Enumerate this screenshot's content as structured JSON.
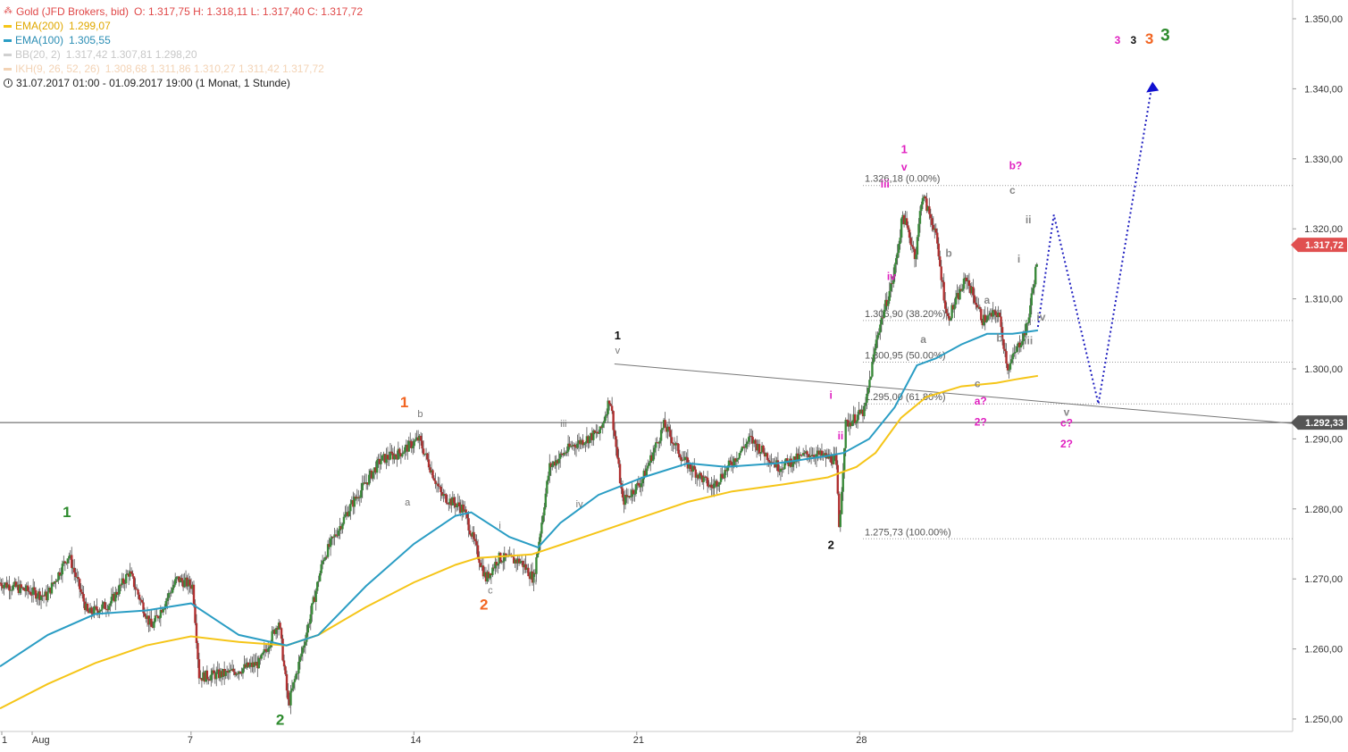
{
  "legend": {
    "title": "Gold (JFD Brokers, bid)",
    "ohlc": "O: 1.317,75  H: 1.318,11  L: 1.317,40  C: 1.317,72",
    "ema200": {
      "label": "EMA(200)",
      "value": "1.299,07",
      "color": "#f5c518"
    },
    "ema100": {
      "label": "EMA(100)",
      "value": "1.305,55",
      "color": "#2a9dc4"
    },
    "bb": {
      "label": "BB(20, 2)",
      "values": "1.317,42   1.307,81   1.298,20"
    },
    "ikh": {
      "label": "IKH(9, 26, 52, 26)",
      "values": "1.308,68   1.311,86   1.310,27   1.311,42   1.317,72"
    },
    "range": "31.07.2017 01:00 - 01.09.2017 19:00   (1 Monat, 1 Stunde)"
  },
  "chart_data": {
    "type": "candlestick",
    "instrument": "Gold (JFD Brokers, bid)",
    "timeframe": "1 Stunde",
    "y_ticks": [
      "1.250,00",
      "1.260,00",
      "1.270,00",
      "1.280,00",
      "1.290,00",
      "1.300,00",
      "1.310,00",
      "1.320,00",
      "1.330,00",
      "1.340,00",
      "1.350,00"
    ],
    "ylim": [
      1246,
      1353
    ],
    "x_ticks": [
      {
        "label": "1",
        "x": 0
      },
      {
        "label": "Aug",
        "x": 1
      },
      {
        "label": "7",
        "x": 6
      },
      {
        "label": "14",
        "x": 13
      },
      {
        "label": "21",
        "x": 20
      },
      {
        "label": "28",
        "x": 27
      }
    ],
    "xlim": [
      0,
      40.6
    ],
    "price_path": [
      [
        0,
        1269.5
      ],
      [
        1.5,
        1267.5
      ],
      [
        2.2,
        1273.5
      ],
      [
        2.8,
        1265
      ],
      [
        3.5,
        1266.5
      ],
      [
        4.1,
        1271
      ],
      [
        4.8,
        1263
      ],
      [
        5.6,
        1270
      ],
      [
        6.1,
        1269
      ],
      [
        6.3,
        1256
      ],
      [
        7.2,
        1256.5
      ],
      [
        8.2,
        1258
      ],
      [
        8.8,
        1264
      ],
      [
        9.1,
        1252
      ],
      [
        9.6,
        1261
      ],
      [
        10.2,
        1273
      ],
      [
        11,
        1280
      ],
      [
        12,
        1287
      ],
      [
        12.6,
        1288
      ],
      [
        13.2,
        1290
      ],
      [
        13.9,
        1282
      ],
      [
        14.6,
        1280
      ],
      [
        15.3,
        1270
      ],
      [
        15.7,
        1273
      ],
      [
        16.4,
        1272.5
      ],
      [
        16.8,
        1270
      ],
      [
        17.3,
        1286
      ],
      [
        18,
        1289
      ],
      [
        18.9,
        1291
      ],
      [
        19.2,
        1296
      ],
      [
        19.6,
        1281
      ],
      [
        20.2,
        1284
      ],
      [
        20.9,
        1292
      ],
      [
        21.5,
        1287
      ],
      [
        22.4,
        1283
      ],
      [
        23.6,
        1290
      ],
      [
        24.5,
        1286
      ],
      [
        25.5,
        1288
      ],
      [
        26.3,
        1287
      ],
      [
        26.4,
        1277
      ],
      [
        26.6,
        1292
      ],
      [
        27.2,
        1294
      ],
      [
        27.6,
        1305
      ],
      [
        28.1,
        1313
      ],
      [
        28.4,
        1322
      ],
      [
        28.8,
        1316
      ],
      [
        29,
        1325
      ],
      [
        29.4,
        1320
      ],
      [
        29.8,
        1307
      ],
      [
        30.4,
        1313
      ],
      [
        30.9,
        1307
      ],
      [
        31.4,
        1308
      ],
      [
        31.7,
        1300
      ],
      [
        32,
        1303
      ],
      [
        32.3,
        1306
      ],
      [
        32.7,
        1318
      ]
    ],
    "ema100": [
      [
        0,
        1257.5
      ],
      [
        1.5,
        1262
      ],
      [
        3,
        1265
      ],
      [
        4.6,
        1265.5
      ],
      [
        6,
        1266.5
      ],
      [
        7.5,
        1262
      ],
      [
        9,
        1260.5
      ],
      [
        10,
        1262
      ],
      [
        11.5,
        1269
      ],
      [
        13,
        1275
      ],
      [
        14.3,
        1279
      ],
      [
        14.8,
        1279.5
      ],
      [
        16,
        1276
      ],
      [
        16.9,
        1274.5
      ],
      [
        17.6,
        1278
      ],
      [
        18.8,
        1282
      ],
      [
        20.2,
        1284.5
      ],
      [
        21.6,
        1286.5
      ],
      [
        22.8,
        1286
      ],
      [
        24.4,
        1286.5
      ],
      [
        25.9,
        1287.5
      ],
      [
        26.5,
        1288
      ],
      [
        27.3,
        1290
      ],
      [
        28.1,
        1294.5
      ],
      [
        28.8,
        1300.5
      ],
      [
        29.4,
        1301.5
      ],
      [
        30.2,
        1303.5
      ],
      [
        31,
        1305
      ],
      [
        31.8,
        1305
      ],
      [
        32.6,
        1305.5
      ]
    ],
    "ema200": [
      [
        0,
        1251.5
      ],
      [
        1.5,
        1255
      ],
      [
        3,
        1258
      ],
      [
        4.6,
        1260.5
      ],
      [
        6,
        1261.8
      ],
      [
        7.5,
        1261
      ],
      [
        9,
        1260.5
      ],
      [
        10,
        1262
      ],
      [
        11.5,
        1266
      ],
      [
        13,
        1269.5
      ],
      [
        14.3,
        1272
      ],
      [
        15,
        1273
      ],
      [
        16.7,
        1273.5
      ],
      [
        17.7,
        1275
      ],
      [
        19,
        1277
      ],
      [
        20.3,
        1279
      ],
      [
        21.6,
        1281
      ],
      [
        23,
        1282.5
      ],
      [
        24.6,
        1283.5
      ],
      [
        26,
        1284.5
      ],
      [
        26.9,
        1286
      ],
      [
        27.5,
        1288
      ],
      [
        28.3,
        1293
      ],
      [
        29.1,
        1296
      ],
      [
        30.2,
        1297.5
      ],
      [
        31.3,
        1298
      ],
      [
        31.9,
        1298.5
      ],
      [
        32.6,
        1299
      ]
    ],
    "fib_levels": [
      {
        "label": "1.326,18 (0.00%)",
        "value": 1326.18
      },
      {
        "label": "1.306,90 (38.20%)",
        "value": 1306.9
      },
      {
        "label": "1.300,95 (50.00%)",
        "value": 1300.95
      },
      {
        "label": "1.295,00 (61.80%)",
        "value": 1295.0
      },
      {
        "label": "1.275,73 (100.00%)",
        "value": 1275.73
      }
    ],
    "horizontal_line": {
      "value": 1292.33,
      "label": "1.292,33"
    },
    "current_price": {
      "value": 1317.72,
      "label": "1.317,72"
    },
    "trendline": [
      [
        19.3,
        1300.7
      ],
      [
        40.6,
        1292.2
      ]
    ],
    "forecast_path": [
      [
        32.6,
        1306
      ],
      [
        33.1,
        1322
      ],
      [
        34.5,
        1295
      ],
      [
        36.2,
        1341
      ]
    ],
    "wave_labels": [
      {
        "text": "1",
        "x": 2.1,
        "y": 1278.8,
        "color": "#2e8b2e",
        "size": 17
      },
      {
        "text": "2",
        "x": 8.8,
        "y": 1249.2,
        "color": "#2e8b2e",
        "size": 17
      },
      {
        "text": "1",
        "x": 12.7,
        "y": 1294.5,
        "color": "#f26522",
        "size": 17
      },
      {
        "text": "b",
        "x": 13.2,
        "y": 1293.1,
        "color": "#777777",
        "size": 11
      },
      {
        "text": "a",
        "x": 12.8,
        "y": 1280.5,
        "color": "#777777",
        "size": 11
      },
      {
        "text": "2",
        "x": 15.2,
        "y": 1265.6,
        "color": "#f26522",
        "size": 17
      },
      {
        "text": "c",
        "x": 15.4,
        "y": 1267.9,
        "color": "#777777",
        "size": 11
      },
      {
        "text": "i",
        "x": 15.7,
        "y": 1277.2,
        "color": "#777777",
        "size": 11
      },
      {
        "text": "ii",
        "x": 16.8,
        "y": 1269.2,
        "color": "#777777",
        "size": 11
      },
      {
        "text": "iii",
        "x": 17.7,
        "y": 1291.7,
        "color": "#777777",
        "size": 11
      },
      {
        "text": "iv",
        "x": 18.2,
        "y": 1280.2,
        "color": "#777777",
        "size": 11
      },
      {
        "text": "1",
        "x": 19.4,
        "y": 1304.2,
        "color": "#111111",
        "size": 13
      },
      {
        "text": "v",
        "x": 19.4,
        "y": 1302.2,
        "color": "#777777",
        "size": 11
      },
      {
        "text": "2",
        "x": 26.1,
        "y": 1274.3,
        "color": "#111111",
        "size": 13
      },
      {
        "text": "i",
        "x": 26.1,
        "y": 1295.7,
        "color": "#e020c0",
        "size": 12
      },
      {
        "text": "ii",
        "x": 26.4,
        "y": 1289.9,
        "color": "#e020c0",
        "size": 12
      },
      {
        "text": "iii",
        "x": 27.8,
        "y": 1325.9,
        "color": "#e020c0",
        "size": 12
      },
      {
        "text": "iv",
        "x": 28.0,
        "y": 1312.7,
        "color": "#e020c0",
        "size": 12
      },
      {
        "text": "1",
        "x": 28.4,
        "y": 1330.8,
        "color": "#e020c0",
        "size": 13
      },
      {
        "text": "v",
        "x": 28.4,
        "y": 1328.3,
        "color": "#e020c0",
        "size": 12
      },
      {
        "text": "b",
        "x": 29.8,
        "y": 1316.0,
        "color": "#888888",
        "size": 12
      },
      {
        "text": "a",
        "x": 29.0,
        "y": 1303.7,
        "color": "#888888",
        "size": 12
      },
      {
        "text": "a",
        "x": 31.0,
        "y": 1309.3,
        "color": "#888888",
        "size": 12
      },
      {
        "text": "b",
        "x": 31.4,
        "y": 1303.9,
        "color": "#888888",
        "size": 12
      },
      {
        "text": "c",
        "x": 30.7,
        "y": 1297.4,
        "color": "#888888",
        "size": 12
      },
      {
        "text": "a?",
        "x": 30.8,
        "y": 1294.9,
        "color": "#e020c0",
        "size": 12
      },
      {
        "text": "2?",
        "x": 30.8,
        "y": 1291.9,
        "color": "#e020c0",
        "size": 12
      },
      {
        "text": "b?",
        "x": 31.9,
        "y": 1328.5,
        "color": "#e020c0",
        "size": 12
      },
      {
        "text": "c",
        "x": 31.8,
        "y": 1325.0,
        "color": "#888888",
        "size": 12
      },
      {
        "text": "ii",
        "x": 32.3,
        "y": 1320.8,
        "color": "#888888",
        "size": 12
      },
      {
        "text": "i",
        "x": 32.0,
        "y": 1315.2,
        "color": "#888888",
        "size": 12
      },
      {
        "text": "iv",
        "x": 32.7,
        "y": 1306.9,
        "color": "#888888",
        "size": 12
      },
      {
        "text": "iii",
        "x": 32.3,
        "y": 1303.5,
        "color": "#888888",
        "size": 12
      },
      {
        "text": "v",
        "x": 33.5,
        "y": 1293.3,
        "color": "#888888",
        "size": 12
      },
      {
        "text": "c?",
        "x": 33.5,
        "y": 1291.8,
        "color": "#e020c0",
        "size": 12
      },
      {
        "text": "2?",
        "x": 33.5,
        "y": 1288.8,
        "color": "#e020c0",
        "size": 12
      },
      {
        "text": "3",
        "x": 35.1,
        "y": 1346.4,
        "color": "#e020c0",
        "size": 12
      },
      {
        "text": "3",
        "x": 35.6,
        "y": 1346.4,
        "color": "#111111",
        "size": 12
      },
      {
        "text": "3",
        "x": 36.1,
        "y": 1346.4,
        "color": "#f26522",
        "size": 17
      },
      {
        "text": "3",
        "x": 36.6,
        "y": 1346.9,
        "color": "#2e8b2e",
        "size": 19
      }
    ]
  }
}
